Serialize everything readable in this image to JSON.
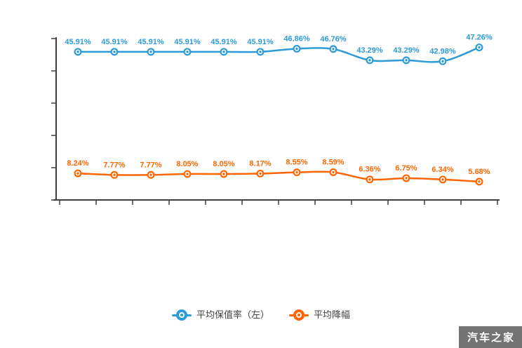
{
  "chart_data": {
    "type": "line",
    "title": "",
    "legend_position": "bottom",
    "grid": false,
    "x_axis": {
      "tick_count": 13,
      "labels_visible": false
    },
    "y_axis": {
      "min": 0,
      "max": 50,
      "tick_step": 10,
      "unit": "%",
      "labels_visible": false
    },
    "series": [
      {
        "name": "平均保值率（左）",
        "color": "#2f9bd6",
        "values": [
          45.91,
          45.91,
          45.91,
          45.91,
          45.91,
          45.91,
          46.86,
          46.76,
          43.29,
          43.29,
          42.98,
          47.26
        ],
        "labels": [
          "45.91%",
          "45.91%",
          "45.91%",
          "45.91%",
          "45.91%",
          "45.91%",
          "46.86%",
          "46.76%",
          "43.29%",
          "43.29%",
          "42.98%",
          "47.26%"
        ]
      },
      {
        "name": "平均降幅",
        "color": "#ff6600",
        "values": [
          8.24,
          7.77,
          7.77,
          8.05,
          8.05,
          8.17,
          8.55,
          8.59,
          6.36,
          6.75,
          6.34,
          5.68
        ],
        "labels": [
          "8.24%",
          "7.77%",
          "7.77%",
          "8.05%",
          "8.05%",
          "8.17%",
          "8.55%",
          "8.59%",
          "6.36%",
          "6.75%",
          "6.34%",
          "5.68%"
        ]
      }
    ]
  },
  "legend": {
    "items": [
      {
        "label": "平均保值率（左）"
      },
      {
        "label": "平均降幅"
      }
    ]
  },
  "watermark": {
    "text": "汽车之家"
  },
  "colors": {
    "axis": "#3f3f3f",
    "background": "#ffffff"
  }
}
